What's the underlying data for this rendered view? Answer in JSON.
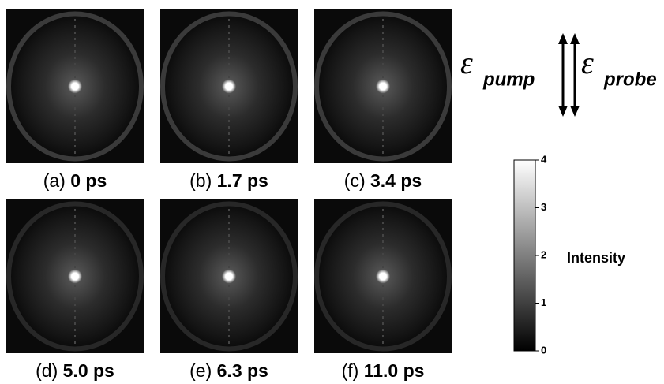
{
  "panels": [
    {
      "letter": "(a)",
      "time": "0 ps"
    },
    {
      "letter": "(b)",
      "time": "1.7 ps"
    },
    {
      "letter": "(c)",
      "time": "3.4 ps"
    },
    {
      "letter": "(d)",
      "time": "5.0 ps"
    },
    {
      "letter": "(e)",
      "time": "6.3 ps"
    },
    {
      "letter": "(f)",
      "time": "11.0 ps"
    }
  ],
  "polarization": {
    "symbol": "ε",
    "pump": "pump",
    "probe": "probe"
  },
  "colorbar": {
    "label": "Intensity",
    "lim": [
      0,
      4
    ],
    "ticks": [
      0,
      1,
      2,
      3,
      4
    ]
  }
}
